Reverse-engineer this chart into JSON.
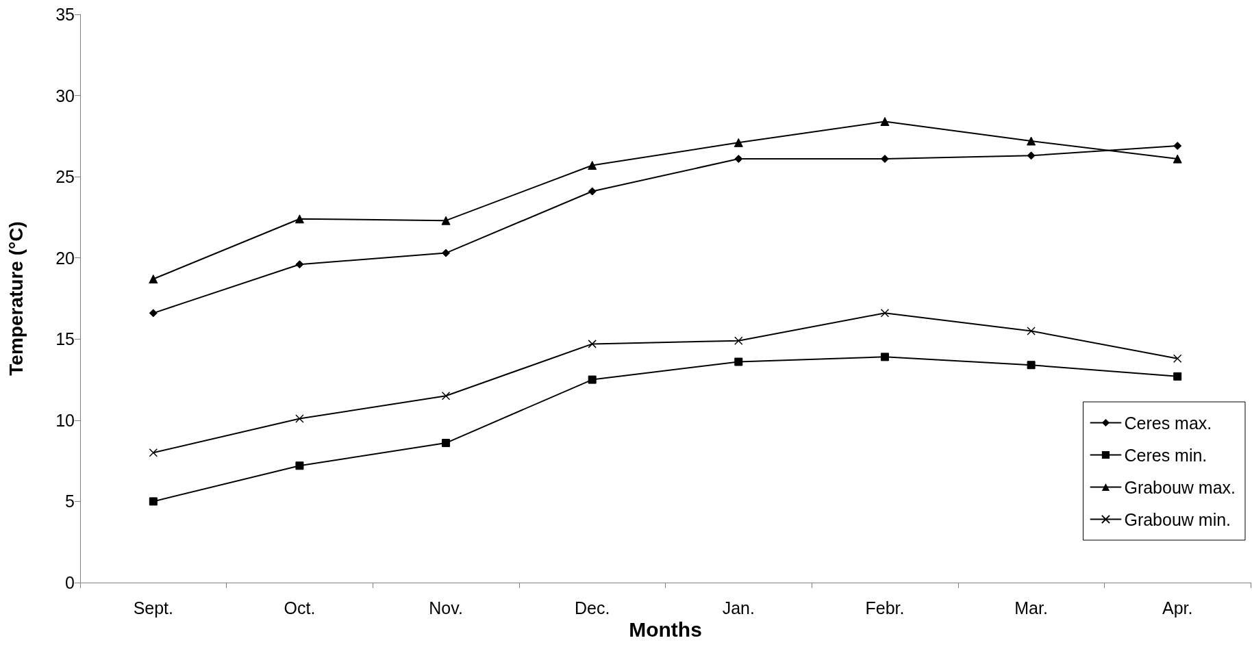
{
  "chart_data": {
    "type": "line",
    "xlabel": "Months",
    "ylabel": "Temperature (°C)",
    "categories": [
      "Sept.",
      "Oct.",
      "Nov.",
      "Dec.",
      "Jan.",
      "Febr.",
      "Mar.",
      "Apr."
    ],
    "ylim": [
      0,
      35
    ],
    "yticks": [
      0,
      5,
      10,
      15,
      20,
      25,
      30,
      35
    ],
    "grid": false,
    "legend": "right",
    "line_style": "solid",
    "series": [
      {
        "name": "Ceres max.",
        "color": "#000000",
        "marker": "diamond",
        "values": [
          16.6,
          19.6,
          20.3,
          24.1,
          26.1,
          26.1,
          26.3,
          26.9
        ]
      },
      {
        "name": "Ceres min.",
        "color": "#000000",
        "marker": "square",
        "values": [
          5.0,
          7.2,
          8.6,
          12.5,
          13.6,
          13.9,
          13.4,
          12.7
        ]
      },
      {
        "name": "Grabouw max.",
        "color": "#000000",
        "marker": "triangle",
        "values": [
          18.7,
          22.4,
          22.3,
          25.7,
          27.1,
          28.4,
          27.2,
          26.1
        ]
      },
      {
        "name": "Grabouw min.",
        "color": "#000000",
        "marker": "cross",
        "values": [
          8.0,
          10.1,
          11.5,
          14.7,
          14.9,
          16.6,
          15.5,
          13.8
        ]
      }
    ]
  }
}
